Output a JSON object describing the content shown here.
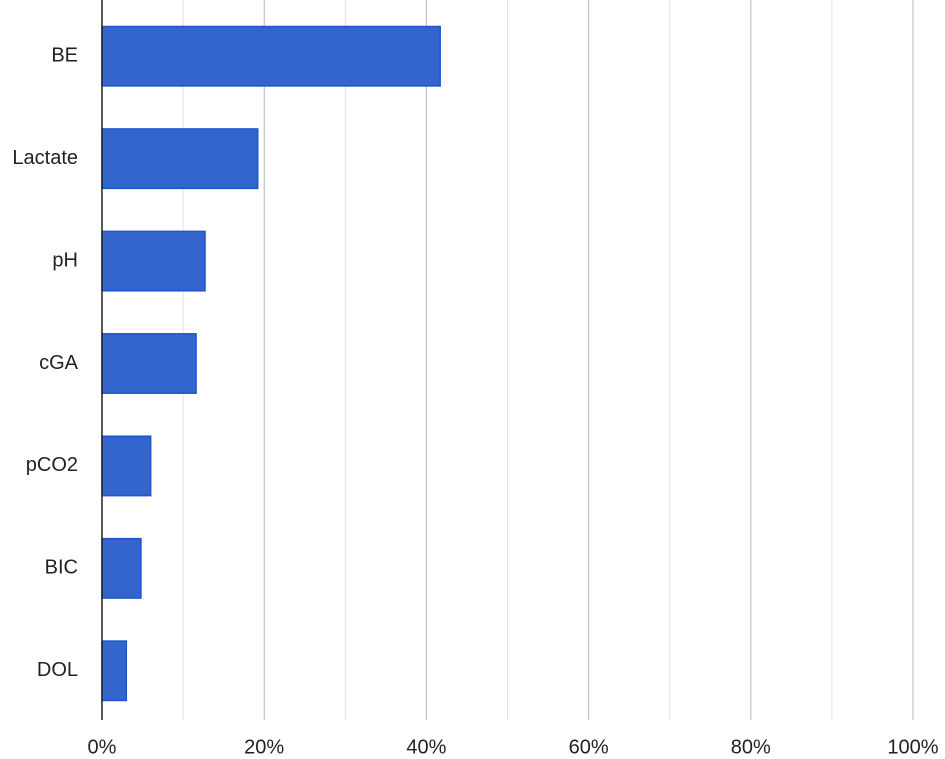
{
  "chart_data": {
    "type": "hbar",
    "categories": [
      "BE",
      "Lactate",
      "pH",
      "cGA",
      "pCO2",
      "BIC",
      "DOL"
    ],
    "values": [
      41.7,
      19.2,
      12.7,
      11.6,
      6.0,
      4.8,
      3.0
    ],
    "color": "#3366cc",
    "xlim": [
      0,
      100
    ],
    "xticks": [
      {
        "value": 0,
        "label": "0%"
      },
      {
        "value": 20,
        "label": "20%"
      },
      {
        "value": 40,
        "label": "40%"
      },
      {
        "value": 60,
        "label": "60%"
      },
      {
        "value": 80,
        "label": "80%"
      },
      {
        "value": 100,
        "label": "100%"
      }
    ],
    "minor_xticks": [
      10,
      30,
      50,
      70,
      90
    ],
    "grid": true
  }
}
